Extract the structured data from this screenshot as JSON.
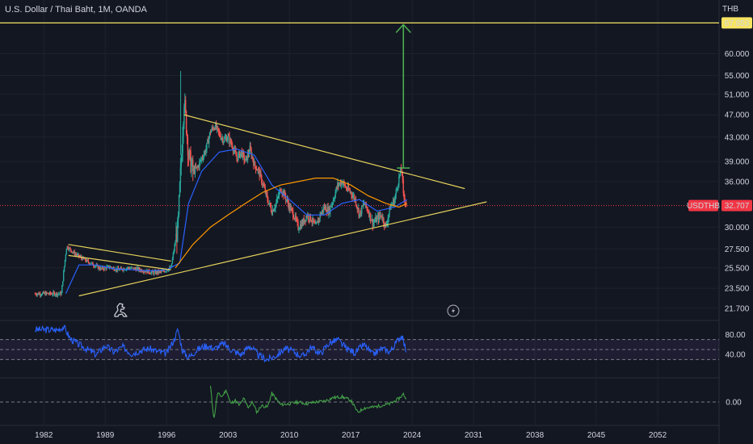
{
  "header": {
    "symbol_title": "U.S. Dollar / Thai Baht, 1M, OANDA",
    "currency": "THB"
  },
  "price_pane": {
    "current_label": "USDTHB",
    "current_price": "32.707",
    "target_price": "67.853"
  },
  "chart_data": [
    {
      "type": "candlestick",
      "x_ticks": [
        "1982",
        "1989",
        "1996",
        "2003",
        "2010",
        "2017",
        "2024",
        "2031",
        "2038",
        "2045",
        "2052"
      ],
      "y_ticks": [
        "60.000",
        "55.000",
        "51.000",
        "47.000",
        "43.000",
        "39.000",
        "36.000",
        "30.000",
        "27.500",
        "25.500",
        "23.500",
        "21.700"
      ],
      "ylim": [
        21.0,
        72.0
      ],
      "xlim": [
        1977,
        2059
      ],
      "log_scale": true,
      "series": [
        {
          "values": [
            [
              1981.0,
              23.0
            ],
            [
              1984.0,
              23.0
            ],
            [
              1984.6,
              27.8
            ],
            [
              1985.5,
              27.0
            ],
            [
              1986.5,
              26.4
            ],
            [
              1987.5,
              25.9
            ],
            [
              1988.5,
              25.4
            ],
            [
              1989.5,
              25.6
            ],
            [
              1990.5,
              25.3
            ],
            [
              1991.5,
              25.5
            ],
            [
              1992.5,
              25.4
            ],
            [
              1993.5,
              25.2
            ],
            [
              1994.5,
              25.0
            ],
            [
              1995.5,
              25.1
            ],
            [
              1996.5,
              25.5
            ],
            [
              1997.3,
              30.0
            ],
            [
              1997.7,
              40.0
            ],
            [
              1998.0,
              50.0
            ],
            [
              1998.5,
              40.0
            ],
            [
              1999.0,
              37.5
            ],
            [
              1999.5,
              38.0
            ],
            [
              2000.0,
              39.5
            ],
            [
              2000.5,
              41.0
            ],
            [
              2001.0,
              44.0
            ],
            [
              2001.5,
              45.0
            ],
            [
              2002.0,
              43.5
            ],
            [
              2002.5,
              42.5
            ],
            [
              2003.0,
              43.0
            ],
            [
              2003.5,
              41.5
            ],
            [
              2004.0,
              39.5
            ],
            [
              2004.5,
              40.5
            ],
            [
              2005.0,
              39.0
            ],
            [
              2005.5,
              41.0
            ],
            [
              2006.0,
              38.5
            ],
            [
              2006.5,
              37.5
            ],
            [
              2007.0,
              35.5
            ],
            [
              2007.5,
              33.5
            ],
            [
              2008.0,
              32.0
            ],
            [
              2008.5,
              33.0
            ],
            [
              2009.0,
              35.0
            ],
            [
              2009.5,
              34.0
            ],
            [
              2010.0,
              32.5
            ],
            [
              2010.5,
              31.5
            ],
            [
              2011.0,
              30.0
            ],
            [
              2011.5,
              30.5
            ],
            [
              2012.0,
              31.5
            ],
            [
              2012.5,
              31.0
            ],
            [
              2013.0,
              30.0
            ],
            [
              2013.5,
              31.5
            ],
            [
              2014.0,
              32.5
            ],
            [
              2014.5,
              32.0
            ],
            [
              2015.0,
              33.5
            ],
            [
              2015.5,
              35.5
            ],
            [
              2016.0,
              36.0
            ],
            [
              2016.5,
              35.0
            ],
            [
              2017.0,
              34.5
            ],
            [
              2017.5,
              33.5
            ],
            [
              2018.0,
              31.5
            ],
            [
              2018.5,
              33.0
            ],
            [
              2019.0,
              32.0
            ],
            [
              2019.5,
              30.5
            ],
            [
              2020.0,
              31.0
            ],
            [
              2020.5,
              31.5
            ],
            [
              2021.0,
              30.0
            ],
            [
              2021.5,
              32.5
            ],
            [
              2022.0,
              33.5
            ],
            [
              2022.5,
              36.5
            ],
            [
              2022.8,
              38.2
            ],
            [
              2023.0,
              34.0
            ],
            [
              2023.4,
              32.7
            ]
          ]
        },
        {
          "values": [
            [
              1984.5,
              23.0
            ],
            [
              1986.0,
              25.8
            ],
            [
              1988.0,
              25.8
            ],
            [
              1990.0,
              25.4
            ],
            [
              1992.0,
              25.3
            ],
            [
              1994.0,
              25.2
            ],
            [
              1996.0,
              25.3
            ],
            [
              1997.5,
              26.0
            ],
            [
              1998.5,
              33.0
            ],
            [
              2000.0,
              37.5
            ],
            [
              2002.0,
              40.5
            ],
            [
              2004.0,
              41.0
            ],
            [
              2006.0,
              40.0
            ],
            [
              2008.0,
              35.5
            ],
            [
              2010.0,
              33.5
            ],
            [
              2012.0,
              31.5
            ],
            [
              2014.0,
              31.5
            ],
            [
              2016.0,
              33.0
            ],
            [
              2018.0,
              33.5
            ],
            [
              2020.0,
              32.0
            ],
            [
              2022.0,
              32.5
            ],
            [
              2023.4,
              33.5
            ]
          ]
        },
        {
          "values": [
            [
              1997.0,
              25.5
            ],
            [
              1999.0,
              28.0
            ],
            [
              2001.0,
              30.0
            ],
            [
              2003.0,
              31.5
            ],
            [
              2005.0,
              33.0
            ],
            [
              2007.0,
              34.5
            ],
            [
              2009.0,
              35.5
            ],
            [
              2011.0,
              36.0
            ],
            [
              2013.0,
              36.5
            ],
            [
              2015.0,
              36.5
            ],
            [
              2017.0,
              35.5
            ],
            [
              2019.0,
              34.0
            ],
            [
              2021.0,
              33.0
            ],
            [
              2022.5,
              32.5
            ],
            [
              2023.4,
              33.0
            ]
          ]
        }
      ],
      "drawings": {
        "triangle_upper": [
          [
            1998.0,
            47.0
          ],
          [
            2030.0,
            35.0
          ]
        ],
        "triangle_lower": [
          [
            1986.0,
            22.8
          ],
          [
            2032.5,
            33.2
          ]
        ],
        "early_upper": [
          [
            1984.8,
            28.0
          ],
          [
            1996.5,
            26.2
          ]
        ],
        "early_lower": [
          [
            1984.8,
            26.8
          ],
          [
            1996.5,
            25.3
          ]
        ],
        "arrow": [
          [
            2023.0,
            38.0
          ],
          [
            2023.0,
            67.853
          ]
        ]
      }
    },
    {
      "type": "line",
      "y_ticks": [
        "80.00",
        "40.00"
      ],
      "ylim": [
        0,
        100
      ],
      "levels": [
        70,
        50,
        30
      ],
      "series": [
        {
          "values": [
            [
              1981.0,
              90
            ],
            [
              1983.5,
              89
            ],
            [
              1984.3,
              96
            ],
            [
              1985.0,
              72
            ],
            [
              1986.0,
              60
            ],
            [
              1987.0,
              50
            ],
            [
              1988.0,
              40
            ],
            [
              1989.0,
              58
            ],
            [
              1990.0,
              45
            ],
            [
              1991.0,
              55
            ],
            [
              1992.0,
              42
            ],
            [
              1993.0,
              48
            ],
            [
              1994.0,
              52
            ],
            [
              1995.0,
              46
            ],
            [
              1996.0,
              42
            ],
            [
              1996.8,
              68
            ],
            [
              1997.3,
              90
            ],
            [
              1997.8,
              48
            ],
            [
              1998.5,
              34
            ],
            [
              1999.5,
              50
            ],
            [
              2000.5,
              58
            ],
            [
              2001.5,
              52
            ],
            [
              2002.5,
              62
            ],
            [
              2003.5,
              48
            ],
            [
              2004.5,
              40
            ],
            [
              2005.5,
              58
            ],
            [
              2006.5,
              38
            ],
            [
              2007.5,
              30
            ],
            [
              2008.5,
              38
            ],
            [
              2009.5,
              52
            ],
            [
              2010.5,
              46
            ],
            [
              2011.5,
              36
            ],
            [
              2012.5,
              55
            ],
            [
              2013.5,
              42
            ],
            [
              2014.5,
              62
            ],
            [
              2015.5,
              70
            ],
            [
              2016.5,
              52
            ],
            [
              2017.5,
              44
            ],
            [
              2018.5,
              60
            ],
            [
              2019.5,
              40
            ],
            [
              2020.5,
              52
            ],
            [
              2021.5,
              46
            ],
            [
              2022.5,
              72
            ],
            [
              2022.8,
              78
            ],
            [
              2023.1,
              60
            ],
            [
              2023.4,
              45
            ]
          ]
        }
      ]
    },
    {
      "type": "line",
      "y_ticks": [
        "0.00"
      ],
      "ylim": [
        -1.2,
        1.2
      ],
      "zero_line": true,
      "series": [
        {
          "values": [
            [
              2001.0,
              0.9
            ],
            [
              2001.4,
              -1.0
            ],
            [
              2001.8,
              0.5
            ],
            [
              2002.3,
              0.3
            ],
            [
              2002.8,
              0.7
            ],
            [
              2003.3,
              -0.1
            ],
            [
              2003.8,
              0.1
            ],
            [
              2004.3,
              -0.2
            ],
            [
              2004.8,
              0.2
            ],
            [
              2005.3,
              -0.3
            ],
            [
              2005.8,
              0.0
            ],
            [
              2006.3,
              -0.6
            ],
            [
              2006.8,
              -0.2
            ],
            [
              2007.5,
              -0.3
            ],
            [
              2008.0,
              0.5
            ],
            [
              2008.3,
              0.3
            ],
            [
              2009.0,
              -0.15
            ],
            [
              2010.0,
              -0.1
            ],
            [
              2011.0,
              0.0
            ],
            [
              2012.0,
              -0.1
            ],
            [
              2013.0,
              0.0
            ],
            [
              2014.0,
              0.05
            ],
            [
              2015.0,
              0.25
            ],
            [
              2016.0,
              0.3
            ],
            [
              2017.0,
              0.1
            ],
            [
              2017.8,
              -0.6
            ],
            [
              2018.5,
              -0.35
            ],
            [
              2019.5,
              -0.3
            ],
            [
              2020.5,
              -0.2
            ],
            [
              2021.5,
              -0.1
            ],
            [
              2022.5,
              0.2
            ],
            [
              2023.0,
              0.45
            ],
            [
              2023.4,
              0.1
            ]
          ]
        }
      ]
    }
  ]
}
